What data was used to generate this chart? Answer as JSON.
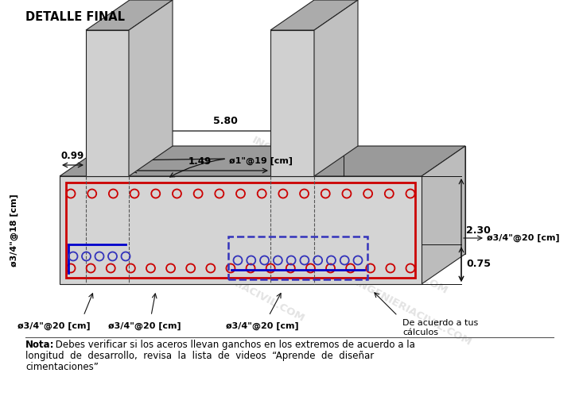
{
  "title": "DETALLE FINAL",
  "note_bold": "Nota:",
  "note_line1": " Debes verificar si los aceros llevan ganchos en los extremos de acuerdo a la",
  "note_line2": "longitud  de  desarrollo,  revisa  la  lista  de  videos  “Aprende  de  diseñar",
  "note_line3": "cimentaciones”",
  "dim_580": "5.80",
  "dim_099": "0.99",
  "dim_149": "1.49",
  "dim_230": "2.30",
  "dim_075": "0.75",
  "label_top": "ø1\"@19 [cm]",
  "label_side_left": "ø3/4\"@18 [cm]",
  "label_right1": "ø3/4\"@20 [cm]",
  "label_bot1": "ø3/4\"@20 [cm]",
  "label_bot2": "ø3/4\"@20 [cm]",
  "label_bot3": "ø3/4\"@20 [cm]",
  "label_calculo": "De acuerdo a tus\ncálculos",
  "watermark": "INGENIERIACIVIL.COM",
  "bg_color": "#ffffff",
  "red_rect_color": "#cc0000",
  "blue_rect_color": "#0000cc",
  "blue_dashed_color": "#3333bb",
  "rebar_color": "#cc0000"
}
